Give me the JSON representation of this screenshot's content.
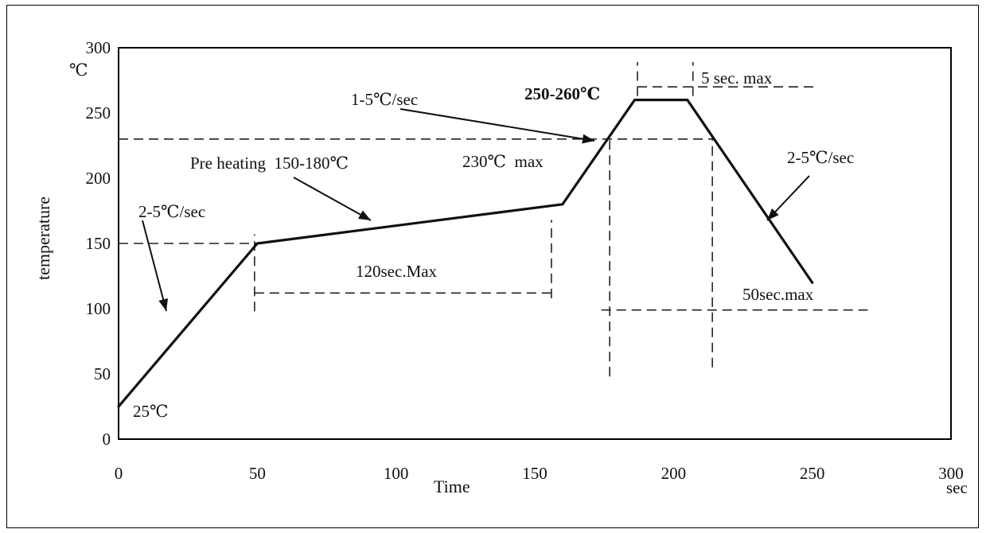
{
  "chart_data": {
    "type": "line",
    "title": "",
    "xlabel": "Time",
    "ylabel": "temperature",
    "x_unit": "sec",
    "y_unit": "℃",
    "xlim": [
      0,
      300
    ],
    "ylim": [
      0,
      300
    ],
    "x_ticks": [
      0,
      50,
      100,
      150,
      200,
      250,
      300
    ],
    "y_ticks": [
      0,
      50,
      100,
      150,
      200,
      250,
      300
    ],
    "grid": false,
    "series": [
      {
        "x": [
          0,
          50,
          160,
          186,
          205,
          250
        ],
        "y": [
          25,
          150,
          180,
          260,
          260,
          120
        ]
      }
    ],
    "annotations": {
      "start_temp": "25℃",
      "ramp1_rate": "2-5℃/sec",
      "preheat": "Pre heating  150-180℃",
      "preheat_time": "120sec.Max",
      "ramp2_rate": "1-5℃/sec",
      "limit_230": "230℃  max",
      "peak_temp": "250-260℃",
      "peak_time": "5 sec. max",
      "cool_rate": "2-5℃/sec",
      "above_230_time": "50sec.max"
    }
  }
}
